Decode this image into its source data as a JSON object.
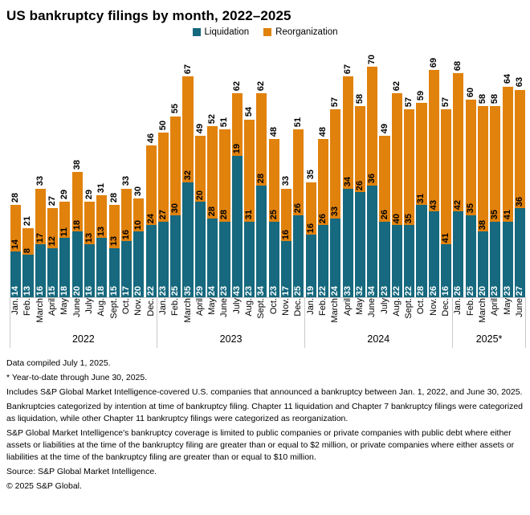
{
  "title": "US bankruptcy filings by month, 2022–2025",
  "legend": [
    {
      "label": "Liquidation",
      "color": "#16697e"
    },
    {
      "label": "Reorganization",
      "color": "#e1820d"
    }
  ],
  "colors": {
    "liquidation": "#16697e",
    "reorganization": "#e1820d",
    "axis_line": "#c9c9c9",
    "label_on_liquidation": "#ffffff",
    "label_on_reorganization": "#000000"
  },
  "chart_data": {
    "type": "bar",
    "stacked": true,
    "title": "US bankruptcy filings by month, 2022–2025",
    "xlabel": "",
    "ylabel": "",
    "ylim": [
      0,
      70
    ],
    "grid": false,
    "legend_position": "top-center",
    "categories": [
      "Jan.",
      "Feb.",
      "March",
      "April",
      "May",
      "June",
      "July",
      "Aug.",
      "Sept.",
      "Oct.",
      "Nov.",
      "Dec.",
      "Jan.",
      "Feb.",
      "March",
      "April",
      "May",
      "June",
      "July",
      "Aug.",
      "Sept.",
      "Oct.",
      "Nov.",
      "Dec.",
      "Jan.",
      "Feb.",
      "March",
      "April",
      "May",
      "June",
      "July",
      "Aug.",
      "Sept.",
      "Oct.",
      "Nov.",
      "Dec.",
      "Jan.",
      "Feb.",
      "March",
      "April",
      "May",
      "June"
    ],
    "year_groups": [
      {
        "label": "2022",
        "count": 12
      },
      {
        "label": "2023",
        "count": 12
      },
      {
        "label": "2024",
        "count": 12
      },
      {
        "label": "2025*",
        "count": 6
      }
    ],
    "series": [
      {
        "name": "Liquidation",
        "color": "#16697e",
        "values": [
          14,
          13,
          16,
          15,
          18,
          20,
          16,
          18,
          15,
          17,
          20,
          22,
          23,
          25,
          35,
          29,
          24,
          23,
          43,
          23,
          34,
          23,
          17,
          25,
          19,
          22,
          24,
          33,
          32,
          34,
          23,
          22,
          22,
          28,
          26,
          16,
          26,
          25,
          20,
          23,
          23,
          27
        ]
      },
      {
        "name": "Reorganization",
        "color": "#e1820d",
        "values": [
          14,
          8,
          17,
          12,
          11,
          18,
          13,
          13,
          13,
          16,
          10,
          24,
          27,
          30,
          32,
          20,
          28,
          28,
          19,
          31,
          28,
          25,
          16,
          26,
          16,
          26,
          33,
          34,
          26,
          36,
          26,
          40,
          35,
          31,
          43,
          41,
          42,
          35,
          38,
          35,
          41,
          36
        ]
      }
    ],
    "totals": [
      28,
      21,
      33,
      27,
      29,
      38,
      29,
      31,
      28,
      33,
      30,
      46,
      50,
      55,
      67,
      49,
      52,
      51,
      62,
      54,
      62,
      48,
      33,
      51,
      35,
      48,
      57,
      67,
      58,
      70,
      49,
      62,
      57,
      59,
      69,
      57,
      68,
      60,
      58,
      58,
      64,
      63
    ]
  },
  "footnotes": [
    "Data compiled July 1, 2025.",
    "* Year-to-date through June 30, 2025.",
    "Includes S&P Global Market Intelligence-covered U.S. companies that announced a bankruptcy between Jan. 1, 2022, and June 30, 2025.",
    "Bankruptcies categorized by intention at time of bankruptcy filing. Chapter 11 liquidation and Chapter 7 bankruptcy filings were categorized as liquidation, while other Chapter 11 bankruptcy filings were categorized as reorganization.",
    "S&P Global Market Intelligence's bankruptcy coverage is limited to public companies or private companies with public debt where either assets or liabilities at the time of the bankruptcy filing are greater than or equal to $2 million, or private companies where either assets or liabilities at the time of the bankruptcy filing are greater than or equal to $10 million.",
    "Source: S&P Global Market Intelligence.",
    "© 2025 S&P Global."
  ]
}
